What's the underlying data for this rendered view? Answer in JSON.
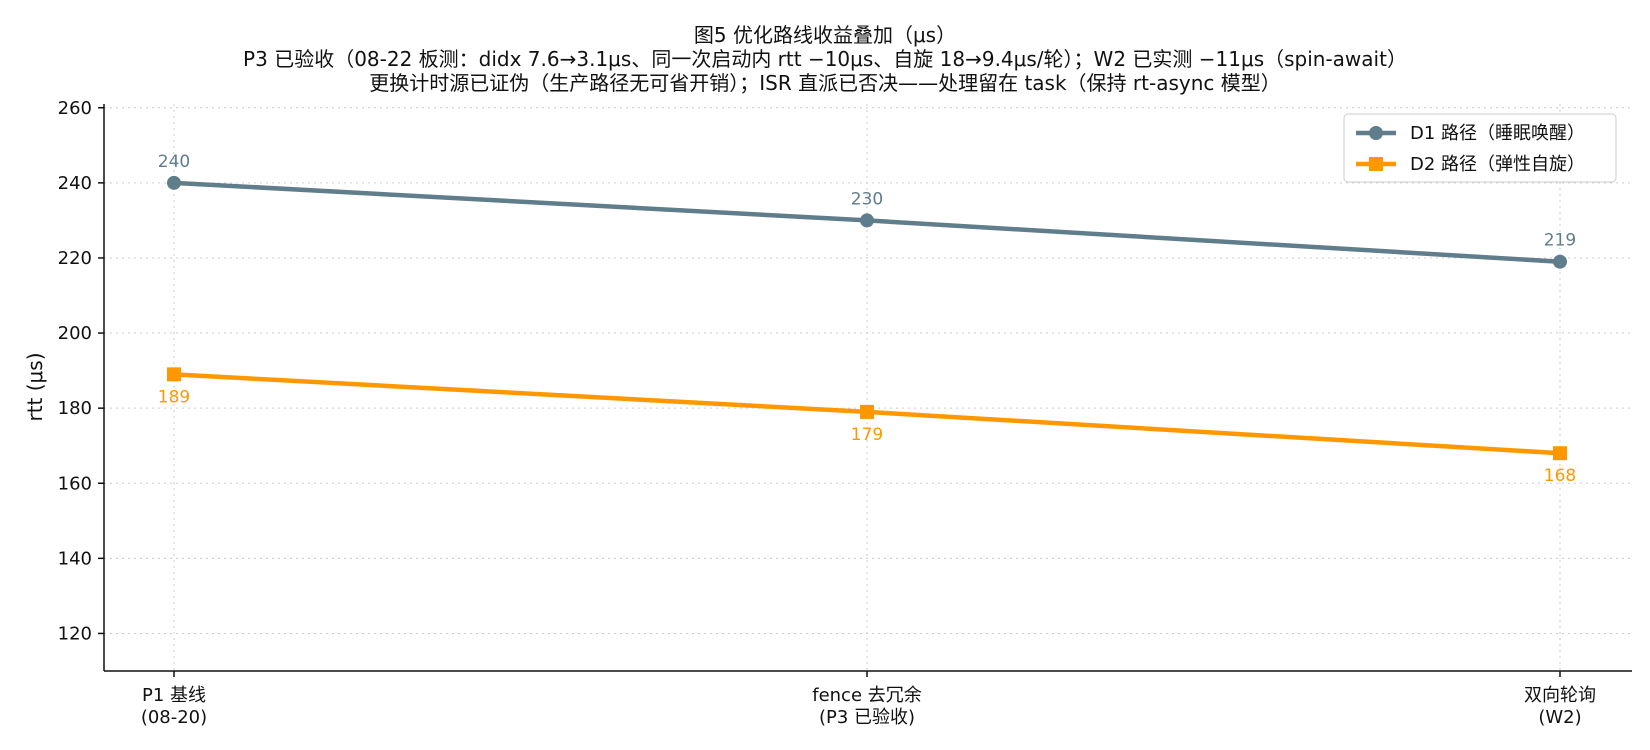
{
  "chart_data": {
    "type": "line",
    "title_lines": [
      "图5 优化路线收益叠加（μs）",
      "P3 已验收（08-22 板测：didx 7.6→3.1μs、同一次启动内 rtt −10μs、自旋 18→9.4μs/轮）；W2 已实测 −11μs（spin-await）",
      "更换计时源已证伪（生产路径无可省开销）；ISR 直派已否决——处理留在 task（保持 rt-async 模型）"
    ],
    "categories": [
      [
        "P1 基线",
        "(08-20)"
      ],
      [
        "fence 去冗余",
        "(P3 已验收)"
      ],
      [
        "双向轮询",
        "(W2)"
      ]
    ],
    "ylabel": "rtt (μs)",
    "ylim": [
      110,
      261
    ],
    "yticks": [
      120,
      140,
      160,
      180,
      200,
      220,
      240,
      260
    ],
    "grid": true,
    "legend_position": "top-right",
    "series": [
      {
        "name": "D1 路径（睡眠唤醒）",
        "values": [
          240,
          230,
          219
        ],
        "labels": [
          "240",
          "230",
          "219"
        ],
        "color": "#607d8b",
        "marker": "circle",
        "label_position": "above"
      },
      {
        "name": "D2 路径（弹性自旋）",
        "values": [
          189,
          179,
          168
        ],
        "labels": [
          "189",
          "179",
          "168"
        ],
        "color": "#ff9800",
        "marker": "square",
        "label_position": "below"
      }
    ]
  }
}
